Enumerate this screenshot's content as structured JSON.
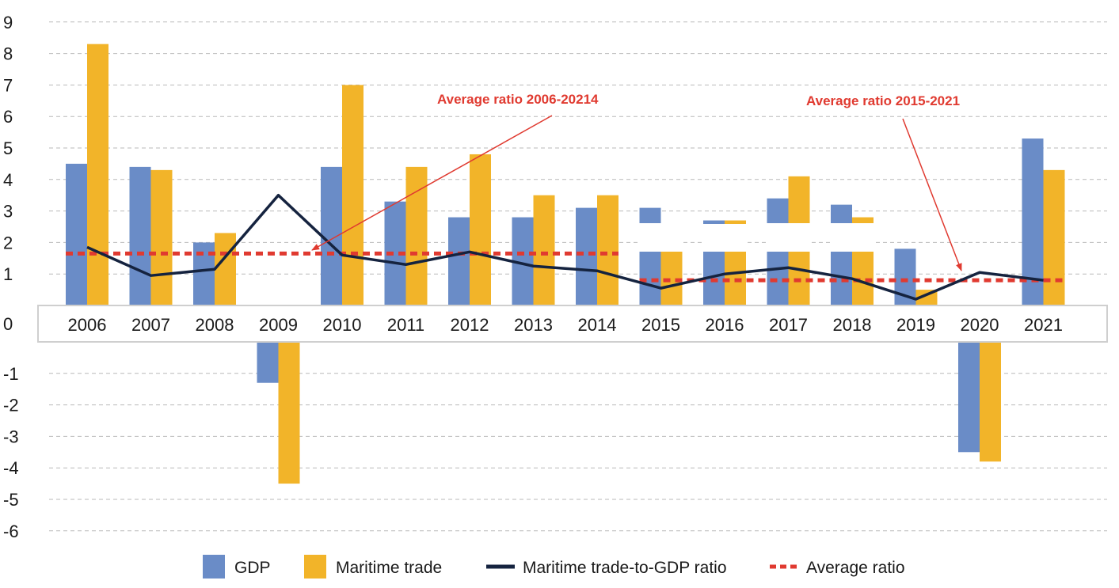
{
  "chart_data": {
    "type": "bar",
    "title": "",
    "xlabel": "",
    "ylabel": "",
    "ylim": [
      -6,
      9
    ],
    "yticks": [
      9,
      8,
      7,
      6,
      5,
      4,
      3,
      2,
      1,
      0,
      -1,
      -2,
      -3,
      -4,
      -5,
      -6
    ],
    "categories": [
      "2006",
      "2007",
      "2008",
      "2009",
      "2010",
      "2011",
      "2012",
      "2013",
      "2014",
      "2015",
      "2016",
      "2017",
      "2018",
      "2019",
      "2020",
      "2021"
    ],
    "series": [
      {
        "name": "GDP",
        "type": "bar",
        "color": "#6a8cc7",
        "values": [
          4.5,
          4.4,
          2.0,
          -1.3,
          4.4,
          3.3,
          2.8,
          2.8,
          3.1,
          3.1,
          2.7,
          3.4,
          3.2,
          1.8,
          -3.5,
          5.3
        ]
      },
      {
        "name": "Maritime trade",
        "type": "bar",
        "color": "#f2b429",
        "values": [
          8.3,
          4.3,
          2.3,
          -4.5,
          7.0,
          4.4,
          4.8,
          3.5,
          3.5,
          1.8,
          2.7,
          4.1,
          2.8,
          0.5,
          -3.8,
          4.3
        ]
      },
      {
        "name": "Maritime trade-to-GDP ratio",
        "type": "line",
        "color": "#15233f",
        "values": [
          1.85,
          0.95,
          1.15,
          3.5,
          1.6,
          1.3,
          1.7,
          1.25,
          1.1,
          0.55,
          1.0,
          1.2,
          0.85,
          0.2,
          1.05,
          0.8
        ]
      },
      {
        "name": "Average ratio",
        "type": "dashed",
        "color": "#e03a30",
        "segments": [
          {
            "from": "2006",
            "to": "2014",
            "value": 1.65
          },
          {
            "from": "2015",
            "to": "2021",
            "value": 0.8
          }
        ]
      }
    ],
    "annotations": [
      {
        "text": "Average ratio 2006-20214",
        "color": "#e03a30"
      },
      {
        "text": "Average ratio 2015-2021",
        "color": "#e03a30"
      }
    ],
    "legend_position": "bottom",
    "grid": true
  }
}
